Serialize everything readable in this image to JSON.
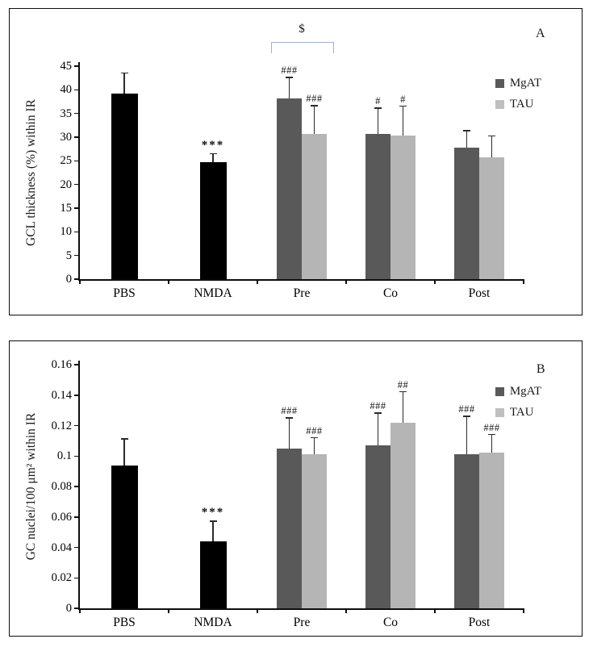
{
  "chart_data": [
    {
      "type": "bar",
      "panel_label": "A",
      "ylabel": "GCL thickness (%) within IR",
      "xlabel": "",
      "ylim": [
        0,
        45
      ],
      "yticks": [
        "45",
        "40",
        "35",
        "30",
        "25",
        "20",
        "15",
        "10",
        "5",
        "0"
      ],
      "categories": [
        "PBS",
        "NMDA",
        "Pre",
        "Co",
        "Post"
      ],
      "grid": false,
      "legend_position": "top-right",
      "legend": [
        {
          "name": "MgAT",
          "color": "#595959"
        },
        {
          "name": "TAU",
          "color": "#bfbfbf"
        }
      ],
      "bar_colors": {
        "control": "#000000",
        "MgAT": "#595959",
        "TAU": "#b5b5b5"
      },
      "groups": [
        {
          "category": "PBS",
          "bars": [
            {
              "series": "control",
              "value": 39.2,
              "error": 4.3,
              "annotation": ""
            }
          ]
        },
        {
          "category": "NMDA",
          "bars": [
            {
              "series": "control",
              "value": 24.7,
              "error": 1.8,
              "annotation": "***"
            }
          ]
        },
        {
          "category": "Pre",
          "bars": [
            {
              "series": "MgAT",
              "value": 38.2,
              "error": 4.4,
              "annotation": "###"
            },
            {
              "series": "TAU",
              "value": 30.7,
              "error": 5.9,
              "annotation": "###"
            }
          ]
        },
        {
          "category": "Co",
          "bars": [
            {
              "series": "MgAT",
              "value": 30.7,
              "error": 5.4,
              "annotation": "#"
            },
            {
              "series": "TAU",
              "value": 30.4,
              "error": 6.1,
              "annotation": "#"
            }
          ]
        },
        {
          "category": "Post",
          "bars": [
            {
              "series": "MgAT",
              "value": 27.8,
              "error": 3.5,
              "annotation": ""
            },
            {
              "series": "TAU",
              "value": 25.7,
              "error": 4.5,
              "annotation": ""
            }
          ]
        }
      ],
      "bracket": {
        "label": "$",
        "category": "Pre",
        "color": "#95b3d7"
      }
    },
    {
      "type": "bar",
      "panel_label": "B",
      "ylabel": "GC nuclei/100 μm² within IR",
      "xlabel": "",
      "ylim": [
        0,
        0.16
      ],
      "yticks": [
        "0.16",
        "0.14",
        "0.12",
        "0.1",
        "0.08",
        "0.06",
        "0.04",
        "0.02",
        "0"
      ],
      "categories": [
        "PBS",
        "NMDA",
        "Pre",
        "Co",
        "Post"
      ],
      "grid": false,
      "legend_position": "top-right",
      "legend": [
        {
          "name": "MgAT",
          "color": "#595959"
        },
        {
          "name": "TAU",
          "color": "#bfbfbf"
        }
      ],
      "bar_colors": {
        "control": "#000000",
        "MgAT": "#595959",
        "TAU": "#b5b5b5"
      },
      "groups": [
        {
          "category": "PBS",
          "bars": [
            {
              "series": "control",
              "value": 0.094,
              "error": 0.017,
              "annotation": ""
            }
          ]
        },
        {
          "category": "NMDA",
          "bars": [
            {
              "series": "control",
              "value": 0.044,
              "error": 0.013,
              "annotation": "***"
            }
          ]
        },
        {
          "category": "Pre",
          "bars": [
            {
              "series": "MgAT",
              "value": 0.105,
              "error": 0.02,
              "annotation": "###"
            },
            {
              "series": "TAU",
              "value": 0.101,
              "error": 0.011,
              "annotation": "###"
            }
          ]
        },
        {
          "category": "Co",
          "bars": [
            {
              "series": "MgAT",
              "value": 0.107,
              "error": 0.021,
              "annotation": "###"
            },
            {
              "series": "TAU",
              "value": 0.122,
              "error": 0.02,
              "annotation": "##"
            }
          ]
        },
        {
          "category": "Post",
          "bars": [
            {
              "series": "MgAT",
              "value": 0.101,
              "error": 0.025,
              "annotation": "###"
            },
            {
              "series": "TAU",
              "value": 0.102,
              "error": 0.012,
              "annotation": "###"
            }
          ]
        }
      ],
      "bracket": null
    }
  ]
}
